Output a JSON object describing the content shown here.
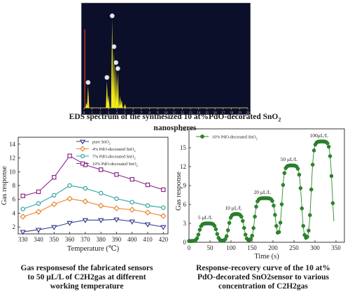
{
  "captions": {
    "eds": "EDS spectrum of the synthesized 10 at%PdO-decorated SnO",
    "eds_sub": "2",
    "eds_tail": " nanospheres",
    "left_l1": "Gas responsesof the fabricated sensors",
    "left_l2": "to 50 μL/L of C2H2gas at different",
    "left_l3": "working temperature",
    "right_l1": "Response-recovery curve of the 10 at%",
    "right_l2": "PdO-decorated SnO2sensor to various",
    "right_l3": "concentration of C2H2gas"
  },
  "colors": {
    "eds_bg": "#0b0f2a",
    "eds_peak": "#f2ea1a",
    "eds_marker": "#d93a2a",
    "pure": "#3a3f8f",
    "pd4": "#e8862a",
    "pd7": "#2aa3a0",
    "pd10": "#8a2a8a",
    "rr": "#2a8a2a"
  },
  "chart_data": [
    {
      "type": "line",
      "name": "eds",
      "xlim": [
        0,
        20
      ],
      "ylim": [
        0,
        1
      ],
      "x_ticks": [
        "0",
        "1",
        "2",
        "3",
        "4",
        "5",
        "6",
        "7",
        "8",
        "9",
        "10",
        "11",
        "12",
        "13",
        "14",
        "15",
        "16",
        "17",
        "18",
        "19",
        "20"
      ],
      "peaks": [
        {
          "x": 0.3,
          "y": 0.05
        },
        {
          "x": 0.5,
          "y": 0.22
        },
        {
          "x": 2.8,
          "y": 0.27
        },
        {
          "x": 3.0,
          "y": 0.13
        },
        {
          "x": 3.44,
          "y": 0.89
        },
        {
          "x": 3.66,
          "y": 0.58
        },
        {
          "x": 3.9,
          "y": 0.42
        },
        {
          "x": 4.13,
          "y": 0.36
        },
        {
          "x": 4.4,
          "y": 0.12
        },
        {
          "x": 4.6,
          "y": 0.08
        },
        {
          "x": 5.0,
          "y": 0.04
        }
      ],
      "marker_line_x": 0.1
    },
    {
      "type": "line",
      "name": "temperature",
      "xlabel": "Temperature (℃)",
      "ylabel": "Gas response",
      "xlim": [
        327,
        423
      ],
      "ylim": [
        1,
        15
      ],
      "x_ticks": [
        330,
        340,
        350,
        360,
        370,
        380,
        390,
        400,
        410,
        420
      ],
      "y_ticks": [
        2,
        4,
        6,
        8,
        10,
        12,
        14
      ],
      "x": [
        330,
        340,
        350,
        360,
        370,
        380,
        390,
        400,
        410,
        420
      ],
      "series": [
        {
          "name": "pure SnO",
          "sub": "2",
          "marker": "triangle-down",
          "color": "#3a3f8f",
          "values": [
            1.3,
            1.6,
            2.0,
            2.6,
            3.0,
            3.0,
            3.1,
            2.8,
            2.4,
            2.0
          ]
        },
        {
          "name": "4% PdO-decorated SnO",
          "sub": "2",
          "marker": "diamond",
          "color": "#e8862a",
          "values": [
            3.5,
            4.2,
            5.3,
            6.1,
            5.7,
            5.1,
            4.7,
            4.5,
            4.1,
            3.6
          ]
        },
        {
          "name": "7% PdO-decorated SnO",
          "sub": "2",
          "marker": "circle",
          "color": "#2aa3a0",
          "values": [
            4.6,
            5.4,
            6.6,
            8.0,
            7.6,
            6.9,
            6.1,
            5.6,
            5.1,
            4.8
          ]
        },
        {
          "name": "10% PdO-decorated SnO",
          "sub": "2",
          "marker": "square",
          "color": "#8a2a8a",
          "values": [
            6.5,
            7.1,
            9.2,
            12.3,
            11.0,
            10.3,
            9.6,
            8.9,
            8.1,
            7.4
          ]
        }
      ]
    },
    {
      "type": "scatter",
      "name": "response-recovery",
      "xlabel": "Time (s)",
      "ylabel": "Gas response",
      "xlim": [
        0,
        370
      ],
      "ylim": [
        0,
        18
      ],
      "x_ticks": [
        0,
        50,
        100,
        150,
        200,
        250,
        300,
        350
      ],
      "y_ticks": [
        0,
        3,
        6,
        9,
        12,
        15,
        18
      ],
      "legend": "10% PdO-decorated SnO",
      "legend_sub": "2",
      "pulses": [
        {
          "label": "5 μL/L",
          "level": 3.0,
          "rise": 18,
          "fall": 60
        },
        {
          "label": "10 μL/L",
          "level": 4.5,
          "rise": 88,
          "fall": 125
        },
        {
          "label": "20 μL/L",
          "level": 7.0,
          "rise": 150,
          "fall": 200
        },
        {
          "label": "50 μL/L",
          "level": 12.2,
          "rise": 215,
          "fall": 262
        },
        {
          "label": "100μL/L",
          "level": 16.0,
          "rise": 285,
          "fall": 335
        }
      ]
    }
  ]
}
